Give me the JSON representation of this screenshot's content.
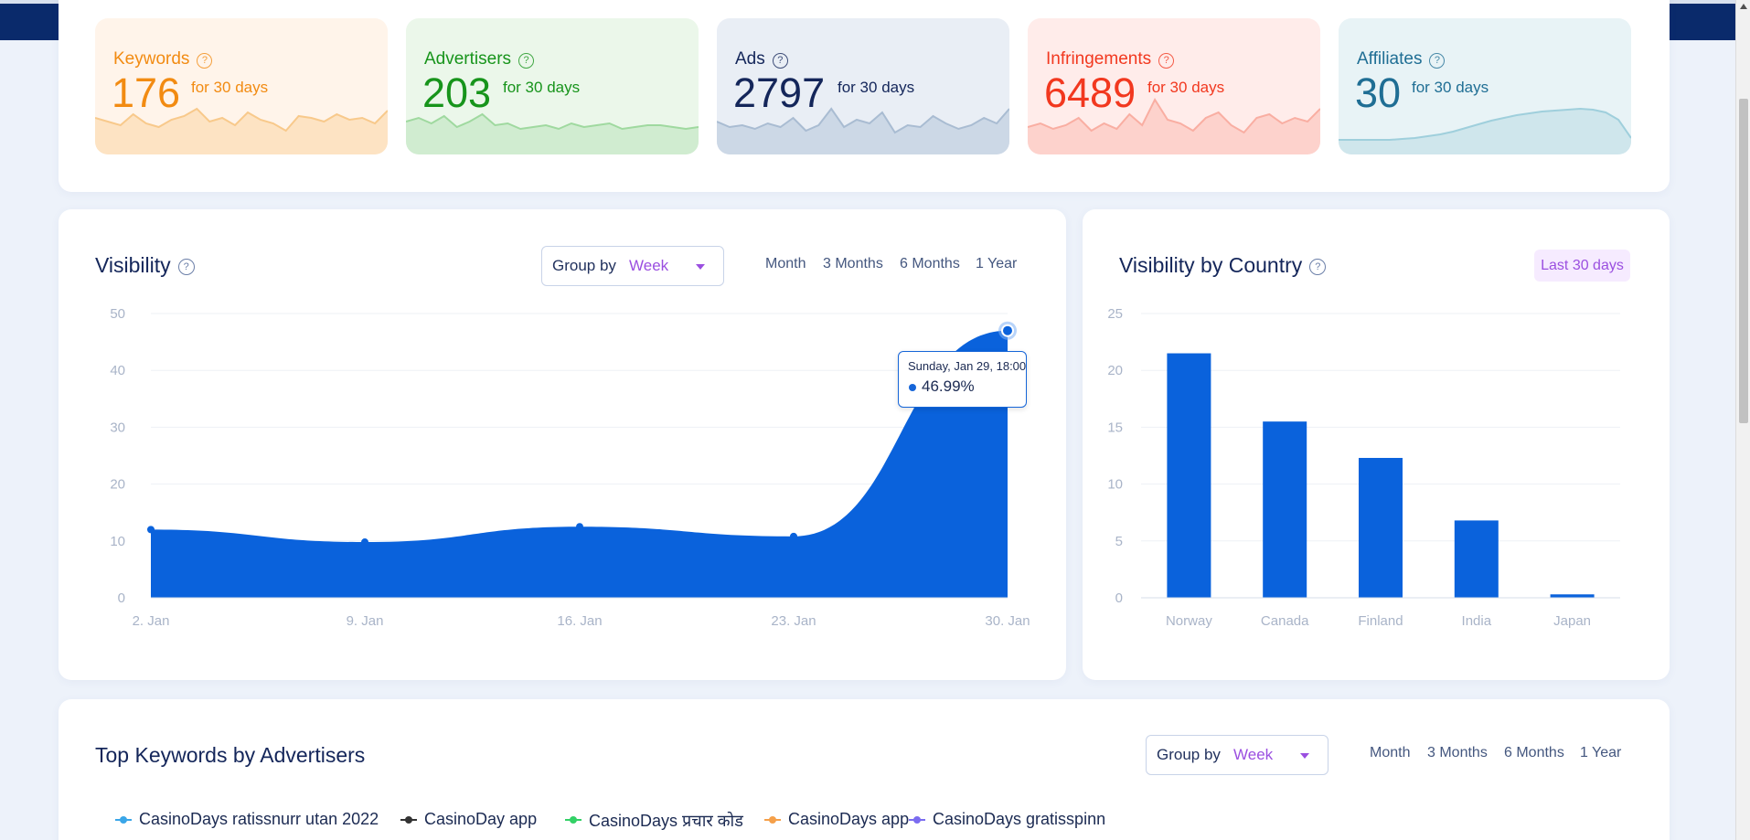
{
  "stats": [
    {
      "label": "Keywords",
      "value": "176",
      "period": "for 30 days",
      "color": "#f28b12",
      "bg": "#fff4ea",
      "fill": "#fde3c3",
      "line": "#f8c98b"
    },
    {
      "label": "Advertisers",
      "value": "203",
      "period": "for 30 days",
      "color": "#17941b",
      "bg": "#ebf7ea",
      "fill": "#d0ecd0",
      "line": "#9fd99f"
    },
    {
      "label": "Ads",
      "value": "2797",
      "period": "for 30 days",
      "color": "#14265a",
      "bg": "#e9eef5",
      "fill": "#ccd8e6",
      "line": "#a9bcd2"
    },
    {
      "label": "Infringements",
      "value": "6489",
      "period": "for 30 days",
      "color": "#f2381f",
      "bg": "#ffecea",
      "fill": "#fdd2cc",
      "line": "#f9aea2"
    },
    {
      "label": "Affiliates",
      "value": "30",
      "period": "for 30 days",
      "color": "#1f6e94",
      "bg": "#e8f3f6",
      "fill": "#cfe6ec",
      "line": "#9fcfdc"
    }
  ],
  "visibility": {
    "title": "Visibility",
    "groupby_label": "Group by",
    "groupby_value": "Week",
    "ranges": [
      "Month",
      "3 Months",
      "6 Months",
      "1 Year"
    ],
    "tooltip_date": "Sunday, Jan 29, 18:00",
    "tooltip_value": "46.99%"
  },
  "country": {
    "title": "Visibility by Country",
    "period_button": "Last 30 days"
  },
  "keywords": {
    "title": "Top Keywords by Advertisers",
    "groupby_label": "Group by",
    "groupby_value": "Week",
    "ranges": [
      "Month",
      "3 Months",
      "6 Months",
      "1 Year"
    ],
    "legend": [
      {
        "label": "CasinoDays ratissnurr utan 2022",
        "color": "#3aa6e8"
      },
      {
        "label": "CasinoDay app",
        "color": "#333333"
      },
      {
        "label": "CasinoDays प्रचार कोड",
        "color": "#33d166"
      },
      {
        "label": "CasinoDays app",
        "color": "#f5a04a"
      },
      {
        "label": "CasinoDays gratisspinn",
        "color": "#7b6cf0"
      }
    ]
  },
  "chart_data": [
    {
      "type": "area",
      "title": "Visibility",
      "x": [
        "2. Jan",
        "9. Jan",
        "16. Jan",
        "23. Jan",
        "29. Jan"
      ],
      "xticks": [
        "2. Jan",
        "9. Jan",
        "16. Jan",
        "23. Jan",
        "30. Jan"
      ],
      "values": [
        12,
        9.8,
        12.5,
        10.8,
        46.99
      ],
      "ylim": [
        0,
        50
      ],
      "yticks": [
        0,
        10,
        20,
        30,
        40,
        50
      ],
      "color": "#0a62dc"
    },
    {
      "type": "bar",
      "title": "Visibility by Country",
      "categories": [
        "Norway",
        "Canada",
        "Finland",
        "India",
        "Japan"
      ],
      "values": [
        21.5,
        15.5,
        12.3,
        6.8,
        0.3
      ],
      "ylim": [
        0,
        25
      ],
      "yticks": [
        0,
        5,
        10,
        15,
        20,
        25
      ],
      "color": "#0a62dc"
    }
  ]
}
